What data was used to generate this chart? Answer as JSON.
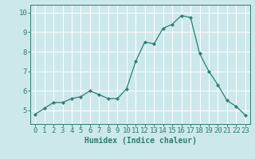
{
  "x": [
    0,
    1,
    2,
    3,
    4,
    5,
    6,
    7,
    8,
    9,
    10,
    11,
    12,
    13,
    14,
    15,
    16,
    17,
    18,
    19,
    20,
    21,
    22,
    23
  ],
  "y": [
    4.8,
    5.1,
    5.4,
    5.4,
    5.6,
    5.7,
    6.0,
    5.8,
    5.6,
    5.6,
    6.1,
    7.5,
    8.5,
    8.4,
    9.2,
    9.4,
    9.85,
    9.75,
    7.9,
    7.0,
    6.3,
    5.5,
    5.2,
    4.75
  ],
  "line_color": "#2e7d6e",
  "marker": "D",
  "marker_size": 2,
  "bg_color": "#cde8eb",
  "grid_color": "#ffffff",
  "xlabel": "Humidex (Indice chaleur)",
  "ylabel": "",
  "xlim": [
    -0.5,
    23.5
  ],
  "ylim": [
    4.3,
    10.4
  ],
  "yticks": [
    5,
    6,
    7,
    8,
    9,
    10
  ],
  "xticks": [
    0,
    1,
    2,
    3,
    4,
    5,
    6,
    7,
    8,
    9,
    10,
    11,
    12,
    13,
    14,
    15,
    16,
    17,
    18,
    19,
    20,
    21,
    22,
    23
  ],
  "label_fontsize": 7,
  "tick_fontsize": 6.5
}
